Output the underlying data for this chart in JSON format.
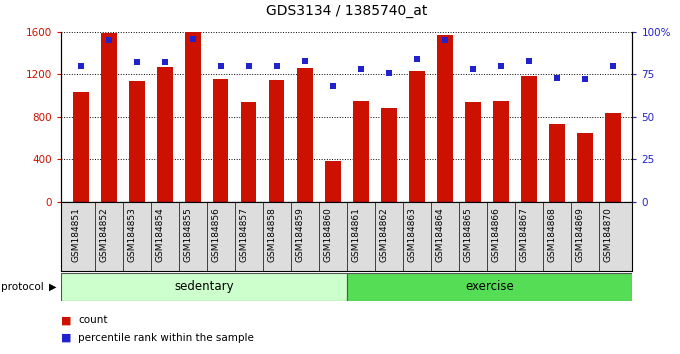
{
  "title": "GDS3134 / 1385740_at",
  "samples": [
    "GSM184851",
    "GSM184852",
    "GSM184853",
    "GSM184854",
    "GSM184855",
    "GSM184856",
    "GSM184857",
    "GSM184858",
    "GSM184859",
    "GSM184860",
    "GSM184861",
    "GSM184862",
    "GSM184863",
    "GSM184864",
    "GSM184865",
    "GSM184866",
    "GSM184867",
    "GSM184868",
    "GSM184869",
    "GSM184870"
  ],
  "counts": [
    1030,
    1590,
    1140,
    1270,
    1600,
    1160,
    940,
    1150,
    1260,
    380,
    950,
    880,
    1230,
    1570,
    940,
    950,
    1180,
    730,
    650,
    840
  ],
  "percentile": [
    80,
    95,
    82,
    82,
    96,
    80,
    80,
    80,
    83,
    68,
    78,
    76,
    84,
    95,
    78,
    80,
    83,
    73,
    72,
    80
  ],
  "bar_color": "#CC1100",
  "dot_color": "#2222CC",
  "sedentary_count": 10,
  "exercise_count": 10,
  "sedentary_color": "#CCFFCC",
  "exercise_color": "#55DD55",
  "ylim_left": [
    0,
    1600
  ],
  "ylim_right": [
    0,
    100
  ],
  "yticks_left": [
    0,
    400,
    800,
    1200,
    1600
  ],
  "yticks_right": [
    0,
    25,
    50,
    75,
    100
  ],
  "ytick_labels_right": [
    "0",
    "25",
    "50",
    "75",
    "100%"
  ],
  "legend_count_label": "count",
  "legend_percentile_label": "percentile rank within the sample",
  "protocol_label": "protocol",
  "sedentary_label": "sedentary",
  "exercise_label": "exercise",
  "xticklabel_bg": "#DDDDDD",
  "title_fontsize": 10,
  "tick_fontsize": 7.5,
  "xlabel_fontsize": 6.5
}
